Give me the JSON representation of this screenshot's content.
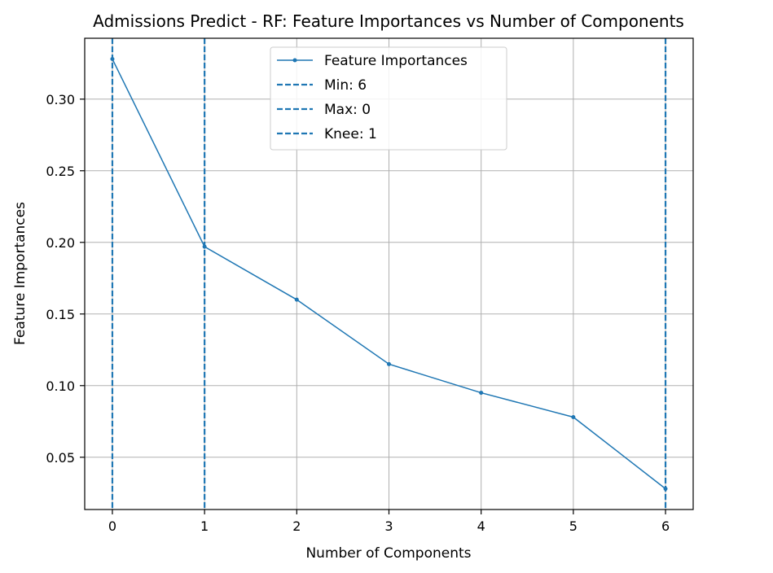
{
  "chart_data": {
    "type": "line",
    "title": "Admissions Predict - RF: Feature Importances vs Number of Components",
    "xlabel": "Number of Components",
    "ylabel": "Feature Importances",
    "xlim": [
      -0.3,
      6.3
    ],
    "ylim": [
      0.0135,
      0.3425
    ],
    "xticks": [
      0,
      1,
      2,
      3,
      4,
      5,
      6
    ],
    "yticks": [
      0.05,
      0.1,
      0.15,
      0.2,
      0.25,
      0.3
    ],
    "ytick_labels": [
      "0.05",
      "0.10",
      "0.15",
      "0.20",
      "0.25",
      "0.30"
    ],
    "grid": true,
    "legend_position": "upper-center",
    "series": [
      {
        "name": "Feature Importances",
        "color": "#1f77b4",
        "x": [
          0,
          1,
          2,
          3,
          4,
          5,
          6
        ],
        "y": [
          0.328,
          0.197,
          0.16,
          0.115,
          0.095,
          0.078,
          0.028
        ]
      }
    ],
    "vlines": [
      {
        "label": "Min: 6",
        "x": 6,
        "color": "#1f77b4",
        "style": "dashed"
      },
      {
        "label": "Max: 0",
        "x": 0,
        "color": "#1f77b4",
        "style": "dashed"
      },
      {
        "label": "Knee: 1",
        "x": 1,
        "color": "#1f77b4",
        "style": "dashed"
      }
    ]
  }
}
